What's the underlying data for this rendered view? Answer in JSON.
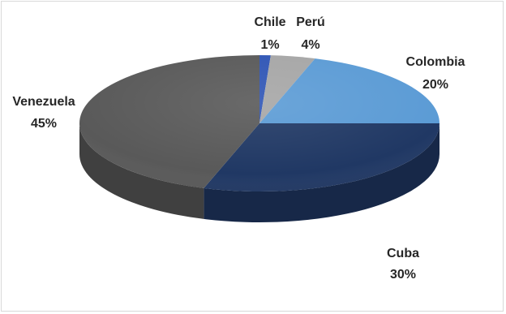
{
  "chart_data": {
    "type": "pie",
    "style": "3d",
    "title": "",
    "slices": [
      {
        "label": "Chile",
        "value": 1,
        "value_label": "1%",
        "color": "#2f55b5"
      },
      {
        "label": "Perú",
        "value": 4,
        "value_label": "4%",
        "color": "#a6a6a6"
      },
      {
        "label": "Colombia",
        "value": 20,
        "value_label": "20%",
        "color": "#5b9bd5"
      },
      {
        "label": "Cuba",
        "value": 30,
        "value_label": "30%",
        "color": "#203864"
      },
      {
        "label": "Venezuela",
        "value": 45,
        "value_label": "45%",
        "color": "#595959"
      }
    ],
    "legend": "none",
    "data_labels": "outside"
  }
}
